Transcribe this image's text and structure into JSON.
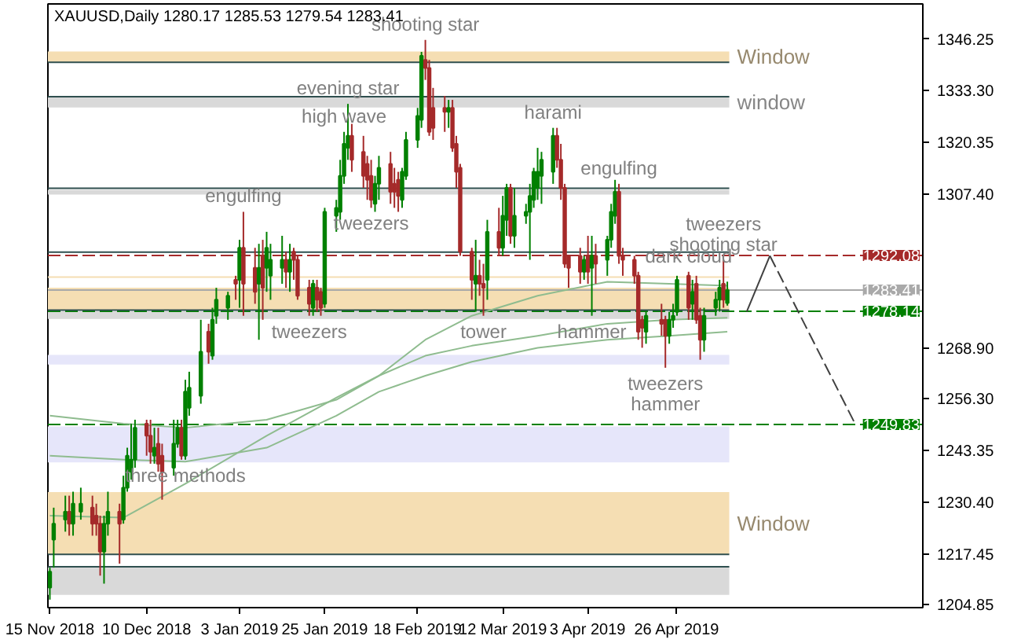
{
  "chart_data": {
    "type": "candlestick",
    "title": "XAUUSD,Daily 1280.17 1285.53 1279.54 1283.41",
    "x": [
      "2018-11-15",
      "2018-11-16",
      "2018-11-19",
      "2018-11-20",
      "2018-11-21",
      "2018-11-23",
      "2018-11-26",
      "2018-11-27",
      "2018-11-28",
      "2018-11-29",
      "2018-11-30",
      "2018-12-03",
      "2018-12-04",
      "2018-12-05",
      "2018-12-06",
      "2018-12-07",
      "2018-12-10",
      "2018-12-11",
      "2018-12-12",
      "2018-12-13",
      "2018-12-14",
      "2018-12-17",
      "2018-12-18",
      "2018-12-19",
      "2018-12-20",
      "2018-12-21",
      "2018-12-24",
      "2018-12-26",
      "2018-12-27",
      "2018-12-28",
      "2018-12-31",
      "2019-01-02",
      "2019-01-03",
      "2019-01-04",
      "2019-01-07",
      "2019-01-08",
      "2019-01-09",
      "2019-01-10",
      "2019-01-11",
      "2019-01-14",
      "2019-01-15",
      "2019-01-16",
      "2019-01-17",
      "2019-01-18",
      "2019-01-21",
      "2019-01-22",
      "2019-01-23",
      "2019-01-24",
      "2019-01-25",
      "2019-01-28",
      "2019-01-29",
      "2019-01-30",
      "2019-01-31",
      "2019-02-01",
      "2019-02-04",
      "2019-02-05",
      "2019-02-06",
      "2019-02-07",
      "2019-02-08",
      "2019-02-11",
      "2019-02-12",
      "2019-02-13",
      "2019-02-14",
      "2019-02-15",
      "2019-02-18",
      "2019-02-19",
      "2019-02-20",
      "2019-02-21",
      "2019-02-22",
      "2019-02-25",
      "2019-02-26",
      "2019-02-27",
      "2019-02-28",
      "2019-03-01",
      "2019-03-04",
      "2019-03-05",
      "2019-03-06",
      "2019-03-07",
      "2019-03-08",
      "2019-03-11",
      "2019-03-12",
      "2019-03-13",
      "2019-03-14",
      "2019-03-15",
      "2019-03-18",
      "2019-03-19",
      "2019-03-20",
      "2019-03-21",
      "2019-03-22",
      "2019-03-25",
      "2019-03-26",
      "2019-03-27",
      "2019-03-28",
      "2019-03-29",
      "2019-04-01",
      "2019-04-02",
      "2019-04-03",
      "2019-04-04",
      "2019-04-05",
      "2019-04-08",
      "2019-04-09",
      "2019-04-10",
      "2019-04-11",
      "2019-04-12",
      "2019-04-15",
      "2019-04-16",
      "2019-04-17",
      "2019-04-18",
      "2019-04-22",
      "2019-04-23",
      "2019-04-24",
      "2019-04-25",
      "2019-04-26",
      "2019-04-29",
      "2019-04-30",
      "2019-05-01",
      "2019-05-02",
      "2019-05-03",
      "2019-05-06",
      "2019-05-07",
      "2019-05-08",
      "2019-05-09"
    ],
    "ohlc": [
      [
        1209,
        1214,
        1206,
        1213
      ],
      [
        1221,
        1229,
        1214,
        1225
      ],
      [
        1226,
        1232,
        1223,
        1228
      ],
      [
        1228,
        1232,
        1222,
        1225
      ],
      [
        1225,
        1233,
        1222,
        1230
      ],
      [
        1228,
        1234,
        1226,
        1230
      ],
      [
        1229,
        1232,
        1222,
        1225
      ],
      [
        1227,
        1230,
        1222,
        1225
      ],
      [
        1225,
        1227,
        1212,
        1218
      ],
      [
        1218,
        1227,
        1210,
        1225
      ],
      [
        1225,
        1233,
        1222,
        1228
      ],
      [
        1228,
        1230,
        1215,
        1225
      ],
      [
        1226,
        1237,
        1225,
        1234
      ],
      [
        1234,
        1244,
        1233,
        1242
      ],
      [
        1238,
        1250,
        1236,
        1241
      ],
      [
        1241,
        1251,
        1239,
        1249
      ],
      [
        1250,
        1251,
        1242,
        1247
      ],
      [
        1247,
        1251,
        1240,
        1243
      ],
      [
        1242,
        1249,
        1240,
        1244
      ],
      [
        1245,
        1249,
        1238,
        1240
      ],
      [
        1242,
        1245,
        1231,
        1238
      ],
      [
        1239,
        1251,
        1237,
        1245
      ],
      [
        1245,
        1251,
        1244,
        1249
      ],
      [
        1249,
        1251,
        1241,
        1242
      ],
      [
        1242,
        1261,
        1241,
        1258
      ],
      [
        1254,
        1263,
        1252,
        1259
      ],
      [
        1257,
        1276,
        1255,
        1268
      ],
      [
        1273,
        1275,
        1265,
        1268
      ],
      [
        1267,
        1279,
        1266,
        1276
      ],
      [
        1277,
        1284,
        1275,
        1281
      ],
      [
        1279,
        1283,
        1276,
        1282
      ],
      [
        1286,
        1287,
        1281,
        1285
      ],
      [
        1286,
        1296,
        1279,
        1294
      ],
      [
        1294,
        1303,
        1277,
        1285
      ],
      [
        1289,
        1294,
        1280,
        1283
      ],
      [
        1285,
        1295,
        1271,
        1289
      ],
      [
        1292,
        1296,
        1276,
        1284
      ],
      [
        1289,
        1298,
        1283,
        1294
      ],
      [
        1287,
        1295,
        1281,
        1291
      ],
      [
        1289,
        1297,
        1285,
        1291
      ],
      [
        1291,
        1293,
        1284,
        1288
      ],
      [
        1288,
        1295,
        1283,
        1291
      ],
      [
        1293,
        1294,
        1286,
        1291
      ],
      [
        1291,
        1292,
        1281,
        1282
      ],
      [
        1284,
        1286,
        1277,
        1280
      ],
      [
        1279,
        1286,
        1277,
        1285
      ],
      [
        1284,
        1286,
        1278,
        1281
      ],
      [
        1283,
        1284,
        1277,
        1279
      ],
      [
        1280,
        1304,
        1279,
        1303
      ],
      [
        1302,
        1306,
        1298,
        1304
      ],
      [
        1303,
        1316,
        1301,
        1312
      ],
      [
        1312,
        1323,
        1310,
        1320
      ],
      [
        1319,
        1330,
        1316,
        1322
      ],
      [
        1322,
        1325,
        1313,
        1316
      ],
      [
        1318,
        1322,
        1309,
        1312
      ],
      [
        1315,
        1317,
        1306,
        1311
      ],
      [
        1312,
        1316,
        1304,
        1306
      ],
      [
        1305,
        1312,
        1303,
        1310
      ],
      [
        1310,
        1317,
        1306,
        1314
      ],
      [
        1315,
        1318,
        1305,
        1308
      ],
      [
        1310,
        1314,
        1304,
        1308
      ],
      [
        1311,
        1313,
        1303,
        1307
      ],
      [
        1306,
        1314,
        1304,
        1313
      ],
      [
        1312,
        1323,
        1311,
        1321
      ],
      [
        1321,
        1329,
        1319,
        1327
      ],
      [
        1326,
        1343,
        1324,
        1342
      ],
      [
        1341,
        1346,
        1336,
        1339
      ],
      [
        1339,
        1341,
        1322,
        1323
      ],
      [
        1329,
        1334,
        1321,
        1324
      ],
      [
        1329,
        1332,
        1323,
        1328
      ],
      [
        1328,
        1331,
        1324,
        1329
      ],
      [
        1329,
        1331,
        1318,
        1319
      ],
      [
        1320,
        1322,
        1309,
        1313
      ],
      [
        1314,
        1315,
        1292,
        1293
      ],
      [
        1293,
        1294,
        1281,
        1286
      ],
      [
        1285,
        1296,
        1278,
        1287
      ],
      [
        1287,
        1291,
        1282,
        1285
      ],
      [
        1285,
        1290,
        1277,
        1284
      ],
      [
        1286,
        1301,
        1281,
        1298
      ],
      [
        1298,
        1304,
        1292,
        1294
      ],
      [
        1294,
        1307,
        1292,
        1302
      ],
      [
        1301,
        1310,
        1297,
        1309
      ],
      [
        1309,
        1310,
        1295,
        1297
      ],
      [
        1297,
        1309,
        1294,
        1302
      ],
      [
        1302,
        1305,
        1300,
        1303
      ],
      [
        1303,
        1310,
        1291,
        1307
      ],
      [
        1306,
        1314,
        1304,
        1313
      ],
      [
        1309,
        1319,
        1306,
        1313
      ],
      [
        1312,
        1318,
        1305,
        1316
      ],
      [
        1313,
        1324,
        1310,
        1322
      ],
      [
        1322,
        1324,
        1314,
        1316
      ],
      [
        1316,
        1320,
        1306,
        1309
      ],
      [
        1309,
        1310,
        1289,
        1290
      ],
      [
        1292,
        1292,
        1284,
        1289
      ],
      [
        1292,
        1294,
        1285,
        1288
      ],
      [
        1288,
        1292,
        1286,
        1291
      ],
      [
        1292,
        1297,
        1285,
        1288
      ],
      [
        1289,
        1297,
        1277,
        1292
      ],
      [
        1292,
        1295,
        1285,
        1290
      ],
      [
        1291,
        1297,
        1287,
        1296
      ],
      [
        1296,
        1305,
        1294,
        1303
      ],
      [
        1302,
        1311,
        1300,
        1308
      ],
      [
        1308,
        1310,
        1290,
        1292
      ],
      [
        1292,
        1294,
        1287,
        1291
      ],
      [
        1291,
        1292,
        1285,
        1287
      ],
      [
        1287,
        1288,
        1271,
        1273
      ],
      [
        1276,
        1277,
        1269,
        1274
      ],
      [
        1273,
        1278,
        1270,
        1277
      ],
      [
        1276,
        1280,
        1272,
        1275
      ],
      [
        1276,
        1277,
        1264,
        1272
      ],
      [
        1272,
        1278,
        1270,
        1276
      ],
      [
        1276,
        1280,
        1274,
        1277
      ],
      [
        1278,
        1287,
        1277,
        1286
      ],
      [
        1287,
        1288,
        1276,
        1279
      ],
      [
        1280,
        1286,
        1276,
        1283
      ],
      [
        1285,
        1287,
        1275,
        1276
      ],
      [
        1277,
        1279,
        1266,
        1271
      ],
      [
        1271,
        1279,
        1268,
        1277
      ],
      [
        1279,
        1283,
        1277,
        1281
      ],
      [
        1281,
        1286,
        1278,
        1284
      ],
      [
        1285,
        1291,
        1279,
        1281
      ],
      [
        1280.17,
        1285.53,
        1279.54,
        1283.41
      ]
    ],
    "series": [
      {
        "type": "line",
        "color": "#8fbc8f",
        "x": [
          "2018-11-15",
          "2018-12-04",
          "2018-12-20",
          "2019-01-10",
          "2019-01-28",
          "2019-02-08",
          "2019-02-20",
          "2019-03-04",
          "2019-03-21",
          "2019-04-08",
          "2019-04-24",
          "2019-05-09"
        ],
        "values": [
          1227,
          1226.5,
          1235,
          1247,
          1256.5,
          1262,
          1271,
          1277,
          1282,
          1285.5,
          1285,
          1284.5
        ]
      },
      {
        "type": "line",
        "color": "#8fbc8f",
        "x": [
          "2018-11-15",
          "2018-12-04",
          "2018-12-20",
          "2019-01-10",
          "2019-01-28",
          "2019-02-08",
          "2019-02-20",
          "2019-03-04",
          "2019-03-21",
          "2019-04-08",
          "2019-04-24",
          "2019-05-09"
        ],
        "values": [
          1252,
          1250,
          1249,
          1251,
          1256,
          1262,
          1267,
          1269.5,
          1272,
          1275,
          1276,
          1276.5
        ]
      },
      {
        "type": "line",
        "color": "#8fbc8f",
        "x": [
          "2018-11-15",
          "2018-12-04",
          "2018-12-20",
          "2019-01-10",
          "2019-01-28",
          "2019-02-08",
          "2019-02-20",
          "2019-03-04",
          "2019-03-21",
          "2019-04-08",
          "2019-04-24",
          "2019-05-09"
        ],
        "values": [
          1242,
          1241,
          1240.5,
          1244,
          1252,
          1258,
          1262,
          1265.5,
          1269,
          1271,
          1272,
          1273
        ]
      },
      {
        "type": "line",
        "color": "#404040",
        "line_style": "solid",
        "x": [
          "2019-05-14",
          "2019-05-20"
        ],
        "values": [
          1278,
          1292
        ]
      },
      {
        "type": "line",
        "color": "#404040",
        "line_style": "dashed",
        "x": [
          "2019-05-20",
          "2019-06-11"
        ],
        "values": [
          1292,
          1250
        ]
      }
    ],
    "xlim": [
      "2018-11-15",
      "2019-06-28"
    ],
    "xticks": [
      {
        "value": "2018-11-15",
        "label": "15 Nov 2018"
      },
      {
        "value": "2018-12-10",
        "label": "10 Dec 2018"
      },
      {
        "value": "2019-01-03",
        "label": "3 Jan 2019"
      },
      {
        "value": "2019-01-25",
        "label": "25 Jan 2019"
      },
      {
        "value": "2019-02-18",
        "label": "18 Feb 2019"
      },
      {
        "value": "2019-03-12",
        "label": "12 Mar 2019"
      },
      {
        "value": "2019-04-03",
        "label": "3 Apr 2019"
      },
      {
        "value": "2019-04-26",
        "label": "26 Apr 2019"
      }
    ],
    "ylim": [
      1204,
      1355
    ],
    "yticks": [
      {
        "value": 1346.25,
        "label": "1346.25"
      },
      {
        "value": 1333.3,
        "label": "1333.30"
      },
      {
        "value": 1320.35,
        "label": "1320.35"
      },
      {
        "value": 1307.4,
        "label": "1307.40"
      },
      {
        "value": 1268.9,
        "label": "1268.90"
      },
      {
        "value": 1256.3,
        "label": "1256.30"
      },
      {
        "value": 1243.35,
        "label": "1243.35"
      },
      {
        "value": 1230.4,
        "label": "1230.40"
      },
      {
        "value": 1217.45,
        "label": "1217.45"
      },
      {
        "value": 1204.85,
        "label": "1204.85"
      }
    ],
    "ref_lines": [
      {
        "axis": "y",
        "value": 1292.08,
        "label": "1292.08",
        "color": "#a52a2a",
        "line_style": "dashed"
      },
      {
        "axis": "y",
        "value": 1278.14,
        "label": "1278.14",
        "color": "#008000",
        "line_style": "dashed"
      },
      {
        "axis": "y",
        "value": 1249.83,
        "label": "1249.83",
        "color": "#008000",
        "line_style": "dashed"
      },
      {
        "axis": "y",
        "value": 1283.41,
        "label": "1283.41",
        "color": "#a9a9a9",
        "line_style": "solid"
      },
      {
        "axis": "y",
        "value": 1340.4,
        "color": "#2f4f4f",
        "line_style": "solid"
      },
      {
        "axis": "y",
        "value": 1331.8,
        "color": "#2f4f4f",
        "line_style": "solid"
      },
      {
        "axis": "y",
        "value": 1308.9,
        "color": "#2f4f4f",
        "line_style": "solid"
      },
      {
        "axis": "y",
        "value": 1292.9,
        "color": "#2f4f4f",
        "line_style": "solid"
      },
      {
        "axis": "y",
        "value": 1286.7,
        "color": "#f5deb3",
        "line_style": "solid"
      },
      {
        "axis": "y",
        "value": 1278.4,
        "color": "#2f4f4f",
        "line_style": "solid"
      },
      {
        "axis": "y",
        "value": 1217.3,
        "color": "#2f4f4f",
        "line_style": "solid"
      },
      {
        "axis": "y",
        "value": 1214.2,
        "color": "#2f4f4f",
        "line_style": "solid"
      }
    ],
    "bands": [
      {
        "axis": "y",
        "from": 1340.4,
        "to": 1343.1,
        "label": "Window",
        "color": "#f5deb3"
      },
      {
        "axis": "y",
        "from": 1329.1,
        "to": 1331.8,
        "label": "window",
        "color": "#d9d9d9"
      },
      {
        "axis": "y",
        "from": 1307.3,
        "to": 1308.5,
        "color": "#d9d9d9"
      },
      {
        "axis": "y",
        "from": 1278.5,
        "to": 1284.0,
        "color": "#f5deb3"
      },
      {
        "axis": "y",
        "from": 1276.2,
        "to": 1278.1,
        "color": "#d9d9d9"
      },
      {
        "axis": "y",
        "from": 1264.8,
        "to": 1267.2,
        "color": "#e6e6fa"
      },
      {
        "axis": "y",
        "from": 1240.3,
        "to": 1249.3,
        "color": "#e6e6fa"
      },
      {
        "axis": "y",
        "from": 1217.3,
        "to": 1232.9,
        "label": "Window",
        "color": "#f5deb3"
      },
      {
        "axis": "y",
        "from": 1207.2,
        "to": 1214.2,
        "color": "#d9d9d9"
      }
    ],
    "annotations": [
      {
        "text": "shooting star",
        "x": "2019-02-20",
        "y": 1346
      },
      {
        "text": "evening star",
        "x": "2019-01-31",
        "y": 1330
      },
      {
        "text": "high wave",
        "x": "2019-01-30",
        "y": 1323
      },
      {
        "text": "engulfing",
        "x": "2019-01-04",
        "y": 1303
      },
      {
        "text": "tweezers",
        "x": "2019-01-21",
        "y": 1277
      },
      {
        "text": "tweezers",
        "x": "2019-02-06",
        "y": 1304
      },
      {
        "text": "tower",
        "x": "2019-03-07",
        "y": 1277
      },
      {
        "text": "harami",
        "x": "2019-03-25",
        "y": 1324
      },
      {
        "text": "engulfing",
        "x": "2019-04-11",
        "y": 1310
      },
      {
        "text": "hammer",
        "x": "2019-04-04",
        "y": 1277
      },
      {
        "text": "dark cloud",
        "x": "2019-04-29",
        "y": 1288
      },
      {
        "text": "shooting star",
        "x": "2019-05-08",
        "y": 1291
      },
      {
        "text": "tweezers",
        "x": "2019-05-08",
        "y": 1291
      },
      {
        "text": "tweezers",
        "x": "2019-04-23",
        "y": 1264
      },
      {
        "text": "hammer",
        "x": "2019-04-23",
        "y": 1264
      },
      {
        "text": "three methods",
        "x": "2018-12-20",
        "y": 1241
      }
    ]
  }
}
